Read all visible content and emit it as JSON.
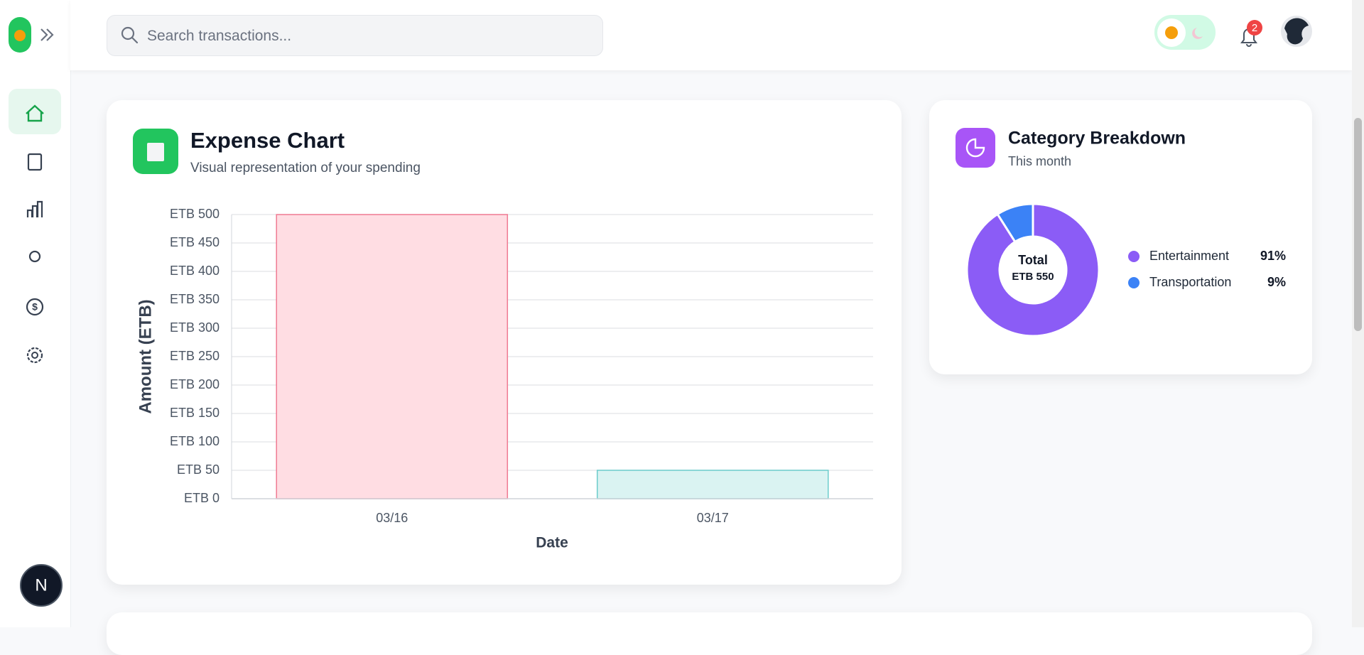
{
  "search_placeholder": "Search transactions...",
  "notification_count": "2",
  "user_initial": "N",
  "chart_data": [
    {
      "type": "bar",
      "title": "Expense Chart",
      "subtitle": "Visual representation of your spending",
      "x_label": "Date",
      "y_label": "Amount (ETB)",
      "categories": [
        "03/16",
        "03/17"
      ],
      "values": [
        500,
        50
      ],
      "colors": [
        "#ffdde3",
        "#daf3f2"
      ],
      "border_colors": [
        "#f07a92",
        "#6ccccc"
      ],
      "ylim": [
        0,
        500
      ],
      "yticks": [
        {
          "value": 0,
          "label": "ETB 0"
        },
        {
          "value": 50,
          "label": "ETB 50"
        },
        {
          "value": 100,
          "label": "ETB 100"
        },
        {
          "value": 150,
          "label": "ETB 150"
        },
        {
          "value": 200,
          "label": "ETB 200"
        },
        {
          "value": 250,
          "label": "ETB 250"
        },
        {
          "value": 300,
          "label": "ETB 300"
        },
        {
          "value": 350,
          "label": "ETB 350"
        },
        {
          "value": 400,
          "label": "ETB 400"
        },
        {
          "value": 450,
          "label": "ETB 450"
        },
        {
          "value": 500,
          "label": "ETB 500"
        }
      ],
      "grid": true
    },
    {
      "type": "donut",
      "title": "Category Breakdown",
      "subtitle": "This month",
      "center_title": "Total",
      "center_value": "ETB 550",
      "categories": [
        "Entertainment",
        "Transportation"
      ],
      "values": [
        91,
        9
      ],
      "value_labels": [
        "91%",
        "9%"
      ],
      "colors": [
        "#8b5cf6",
        "#3b82f6"
      ]
    }
  ]
}
